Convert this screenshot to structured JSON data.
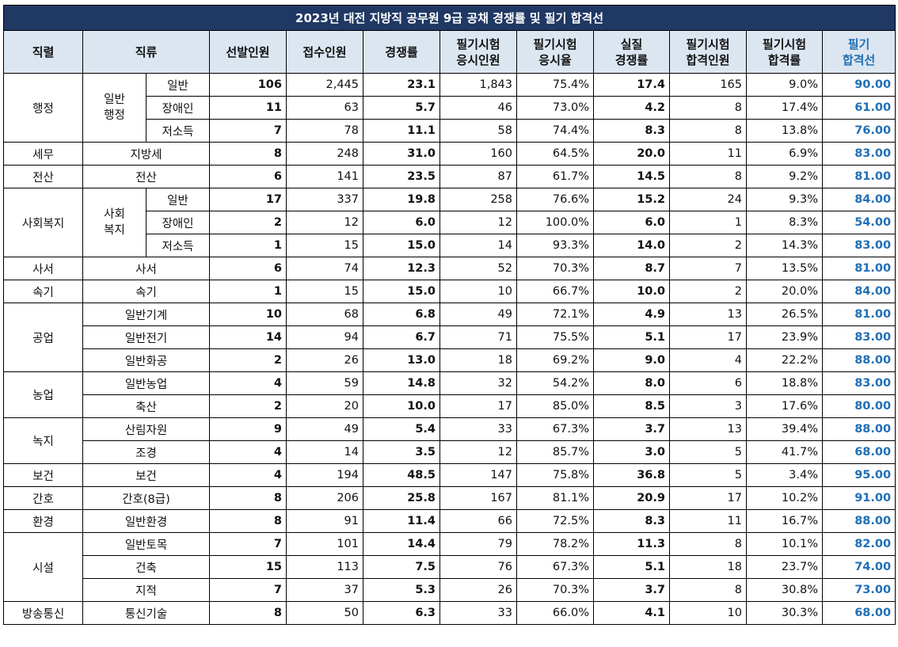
{
  "title": "2023년 대전 지방직 공무원 9급 공채 경쟁률 및 필기 합격선",
  "headers": {
    "h0": "직렬",
    "h1": "직류",
    "h2": "선발인원",
    "h3": "접수인원",
    "h4": "경쟁률",
    "h5a": "필기시험",
    "h5b": "응시인원",
    "h6a": "필기시험",
    "h6b": "응시율",
    "h7a": "실질",
    "h7b": "경쟁률",
    "h8a": "필기시험",
    "h8b": "합격인원",
    "h9a": "필기시험",
    "h9b": "합격률",
    "h10a": "필기",
    "h10b": "합격선"
  },
  "groups": {
    "g0": "행정",
    "g0s1": "일반",
    "g0s2": "행정",
    "g1": "세무",
    "g2": "전산",
    "g3": "사회복지",
    "g3s1": "사회",
    "g3s2": "복지",
    "g4": "사서",
    "g5": "속기",
    "g6": "공업",
    "g7": "농업",
    "g8": "녹지",
    "g9": "보건",
    "g10": "간호",
    "g11": "환경",
    "g12": "시설",
    "g13": "방송통신"
  },
  "rows": [
    {
      "sub": "일반",
      "sel": "106",
      "app": "2,445",
      "comp": "23.1",
      "took": "1,843",
      "rate": "75.4%",
      "real": "17.4",
      "pass": "165",
      "prate": "9.0%",
      "cut": "90.00"
    },
    {
      "sub": "장애인",
      "sel": "11",
      "app": "63",
      "comp": "5.7",
      "took": "46",
      "rate": "73.0%",
      "real": "4.2",
      "pass": "8",
      "prate": "17.4%",
      "cut": "61.00"
    },
    {
      "sub": "저소득",
      "sel": "7",
      "app": "78",
      "comp": "11.1",
      "took": "58",
      "rate": "74.4%",
      "real": "8.3",
      "pass": "8",
      "prate": "13.8%",
      "cut": "76.00"
    },
    {
      "sub": "지방세",
      "sel": "8",
      "app": "248",
      "comp": "31.0",
      "took": "160",
      "rate": "64.5%",
      "real": "20.0",
      "pass": "11",
      "prate": "6.9%",
      "cut": "83.00"
    },
    {
      "sub": "전산",
      "sel": "6",
      "app": "141",
      "comp": "23.5",
      "took": "87",
      "rate": "61.7%",
      "real": "14.5",
      "pass": "8",
      "prate": "9.2%",
      "cut": "81.00"
    },
    {
      "sub": "일반",
      "sel": "17",
      "app": "337",
      "comp": "19.8",
      "took": "258",
      "rate": "76.6%",
      "real": "15.2",
      "pass": "24",
      "prate": "9.3%",
      "cut": "84.00"
    },
    {
      "sub": "장애인",
      "sel": "2",
      "app": "12",
      "comp": "6.0",
      "took": "12",
      "rate": "100.0%",
      "real": "6.0",
      "pass": "1",
      "prate": "8.3%",
      "cut": "54.00"
    },
    {
      "sub": "저소득",
      "sel": "1",
      "app": "15",
      "comp": "15.0",
      "took": "14",
      "rate": "93.3%",
      "real": "14.0",
      "pass": "2",
      "prate": "14.3%",
      "cut": "83.00"
    },
    {
      "sub": "사서",
      "sel": "6",
      "app": "74",
      "comp": "12.3",
      "took": "52",
      "rate": "70.3%",
      "real": "8.7",
      "pass": "7",
      "prate": "13.5%",
      "cut": "81.00"
    },
    {
      "sub": "속기",
      "sel": "1",
      "app": "15",
      "comp": "15.0",
      "took": "10",
      "rate": "66.7%",
      "real": "10.0",
      "pass": "2",
      "prate": "20.0%",
      "cut": "84.00"
    },
    {
      "sub": "일반기계",
      "sel": "10",
      "app": "68",
      "comp": "6.8",
      "took": "49",
      "rate": "72.1%",
      "real": "4.9",
      "pass": "13",
      "prate": "26.5%",
      "cut": "81.00"
    },
    {
      "sub": "일반전기",
      "sel": "14",
      "app": "94",
      "comp": "6.7",
      "took": "71",
      "rate": "75.5%",
      "real": "5.1",
      "pass": "17",
      "prate": "23.9%",
      "cut": "83.00"
    },
    {
      "sub": "일반화공",
      "sel": "2",
      "app": "26",
      "comp": "13.0",
      "took": "18",
      "rate": "69.2%",
      "real": "9.0",
      "pass": "4",
      "prate": "22.2%",
      "cut": "88.00"
    },
    {
      "sub": "일반농업",
      "sel": "4",
      "app": "59",
      "comp": "14.8",
      "took": "32",
      "rate": "54.2%",
      "real": "8.0",
      "pass": "6",
      "prate": "18.8%",
      "cut": "83.00"
    },
    {
      "sub": "축산",
      "sel": "2",
      "app": "20",
      "comp": "10.0",
      "took": "17",
      "rate": "85.0%",
      "real": "8.5",
      "pass": "3",
      "prate": "17.6%",
      "cut": "80.00"
    },
    {
      "sub": "산림자원",
      "sel": "9",
      "app": "49",
      "comp": "5.4",
      "took": "33",
      "rate": "67.3%",
      "real": "3.7",
      "pass": "13",
      "prate": "39.4%",
      "cut": "88.00"
    },
    {
      "sub": "조경",
      "sel": "4",
      "app": "14",
      "comp": "3.5",
      "took": "12",
      "rate": "85.7%",
      "real": "3.0",
      "pass": "5",
      "prate": "41.7%",
      "cut": "68.00"
    },
    {
      "sub": "보건",
      "sel": "4",
      "app": "194",
      "comp": "48.5",
      "took": "147",
      "rate": "75.8%",
      "real": "36.8",
      "pass": "5",
      "prate": "3.4%",
      "cut": "95.00"
    },
    {
      "sub": "간호(8급)",
      "sel": "8",
      "app": "206",
      "comp": "25.8",
      "took": "167",
      "rate": "81.1%",
      "real": "20.9",
      "pass": "17",
      "prate": "10.2%",
      "cut": "91.00"
    },
    {
      "sub": "일반환경",
      "sel": "8",
      "app": "91",
      "comp": "11.4",
      "took": "66",
      "rate": "72.5%",
      "real": "8.3",
      "pass": "11",
      "prate": "16.7%",
      "cut": "88.00"
    },
    {
      "sub": "일반토목",
      "sel": "7",
      "app": "101",
      "comp": "14.4",
      "took": "79",
      "rate": "78.2%",
      "real": "11.3",
      "pass": "8",
      "prate": "10.1%",
      "cut": "82.00"
    },
    {
      "sub": "건축",
      "sel": "15",
      "app": "113",
      "comp": "7.5",
      "took": "76",
      "rate": "67.3%",
      "real": "5.1",
      "pass": "18",
      "prate": "23.7%",
      "cut": "74.00"
    },
    {
      "sub": "지적",
      "sel": "7",
      "app": "37",
      "comp": "5.3",
      "took": "26",
      "rate": "70.3%",
      "real": "3.7",
      "pass": "8",
      "prate": "30.8%",
      "cut": "73.00"
    },
    {
      "sub": "통신기술",
      "sel": "8",
      "app": "50",
      "comp": "6.3",
      "took": "33",
      "rate": "66.0%",
      "real": "4.1",
      "pass": "10",
      "prate": "30.3%",
      "cut": "68.00"
    }
  ]
}
